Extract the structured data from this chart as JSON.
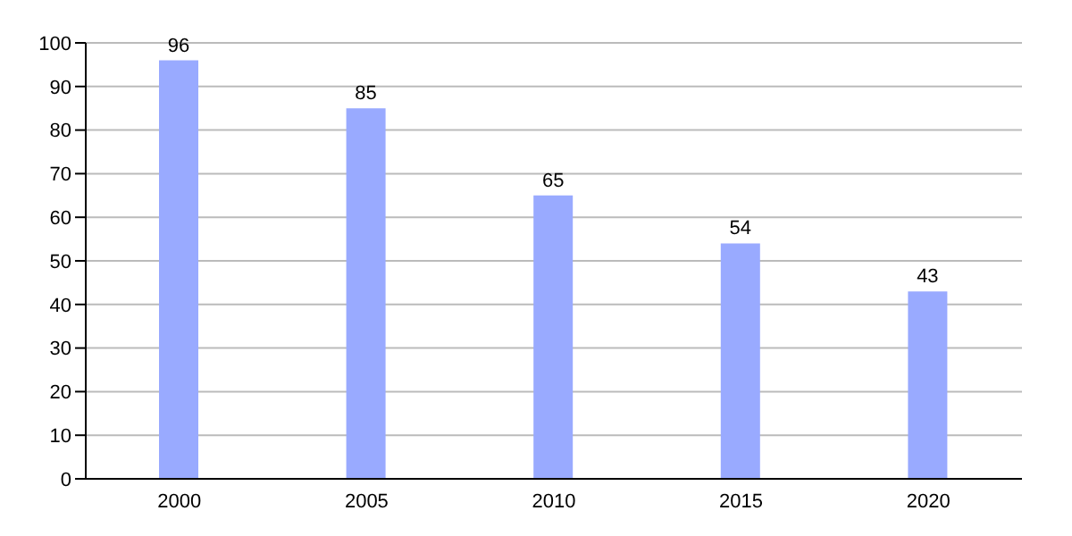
{
  "chart_data": {
    "type": "bar",
    "categories": [
      "2000",
      "2005",
      "2010",
      "2015",
      "2020"
    ],
    "values": [
      96,
      85,
      65,
      54,
      43
    ],
    "color": "#99aaff",
    "ylim": [
      0,
      100
    ],
    "yticks": [
      0,
      10,
      20,
      30,
      40,
      50,
      60,
      70,
      80,
      90,
      100
    ],
    "grid": "y",
    "data_labels": true
  }
}
